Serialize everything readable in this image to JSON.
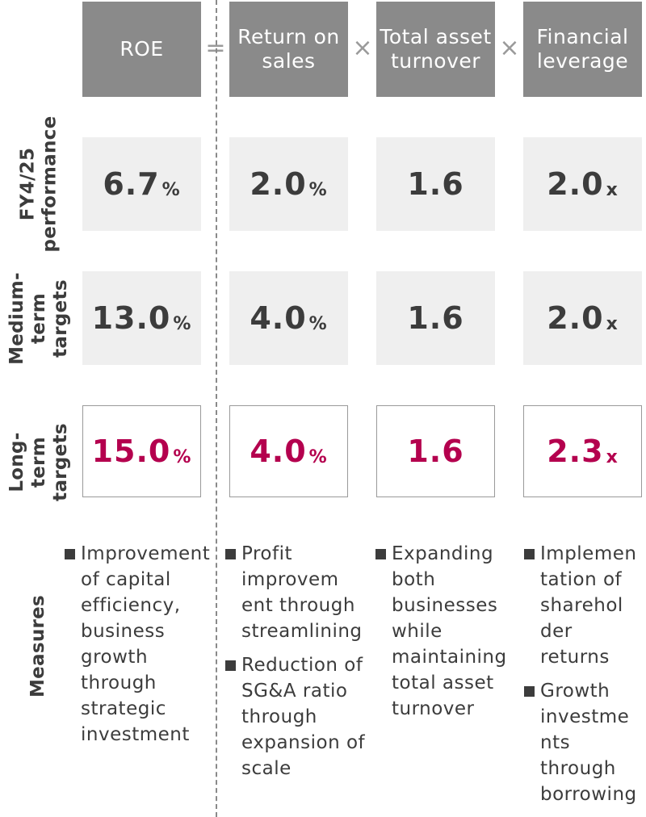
{
  "header": {
    "roe": "ROE",
    "equals": "=",
    "return_on_sales": "Return on sales",
    "times1": "×",
    "total_asset_turnover": "Total asset turnover",
    "times2": "×",
    "financial_leverage": "Financial leverage"
  },
  "rows": {
    "fy": {
      "label": "FY4/25 performance",
      "roe": {
        "value": "6.7",
        "unit": "%"
      },
      "ros": {
        "value": "2.0",
        "unit": "%"
      },
      "tat": {
        "value": "1.6",
        "unit": ""
      },
      "fl": {
        "value": "2.0",
        "unit": "x"
      }
    },
    "medium": {
      "label": "Medium-term targets",
      "roe": {
        "value": "13.0",
        "unit": "%"
      },
      "ros": {
        "value": "4.0",
        "unit": "%"
      },
      "tat": {
        "value": "1.6",
        "unit": ""
      },
      "fl": {
        "value": "2.0",
        "unit": "x"
      }
    },
    "long": {
      "label": "Long-term targets",
      "roe": {
        "value": "15.0",
        "unit": "%"
      },
      "ros": {
        "value": "4.0",
        "unit": "%"
      },
      "tat": {
        "value": "1.6",
        "unit": ""
      },
      "fl": {
        "value": "2.3",
        "unit": "x"
      }
    }
  },
  "measures": {
    "label": "Measures",
    "roe": [
      "Improvement of capital efficiency, business growth through strategic investment"
    ],
    "ros": [
      "Profit improvem ent through streamlining",
      "Reduction of SG&A ratio through expansion of scale"
    ],
    "tat": [
      "Expanding both businesses while maintaining total asset turnover"
    ],
    "fl": [
      "Implemen tation of sharehol der returns",
      "Growth investme nts through borrowing"
    ]
  },
  "colors": {
    "header_bg": "#8a8a8a",
    "cell_bg": "#efefef",
    "highlight": "#b4004e",
    "text": "#3c3c3c"
  }
}
